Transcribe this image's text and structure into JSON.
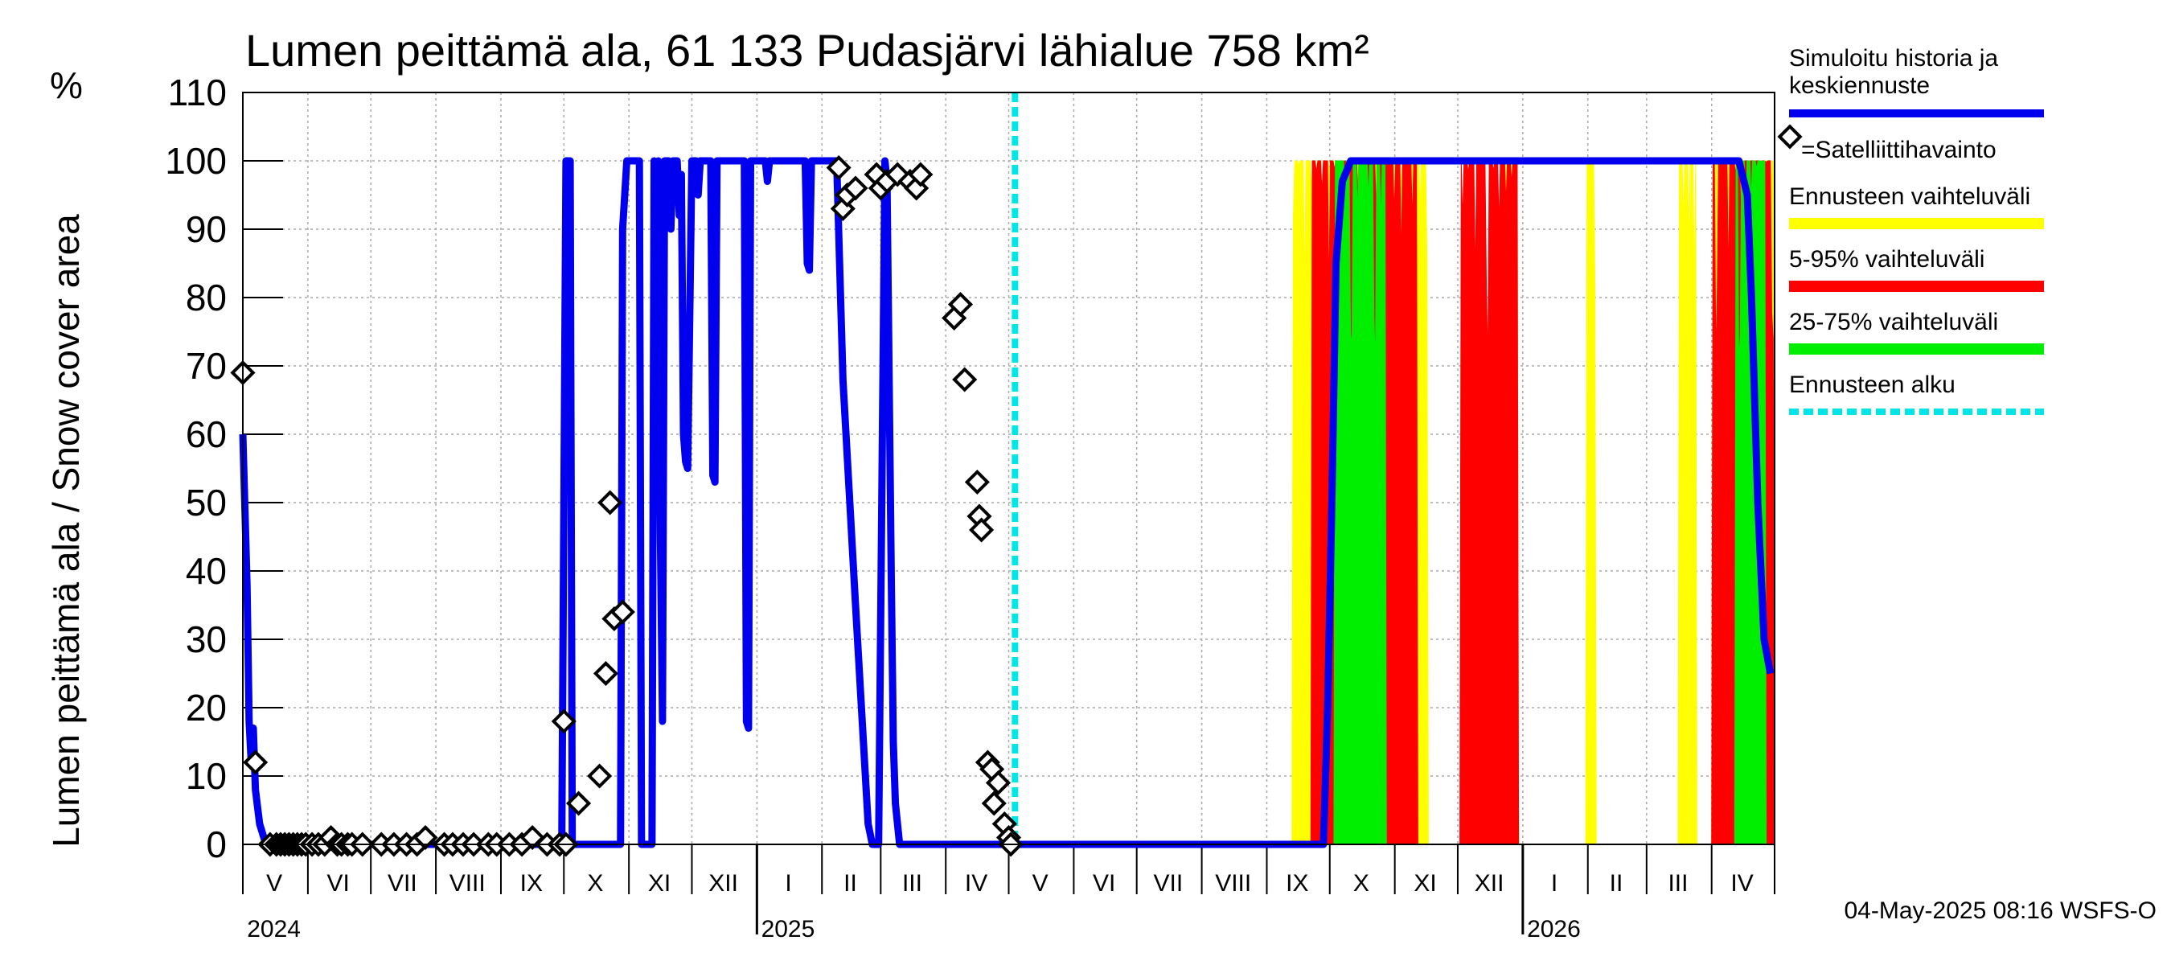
{
  "chart_data": {
    "type": "area",
    "title": "Lumen peittämä ala, 61 133 Pudasjärvi lähialue 758 km²",
    "ylabel": "Lumen peittämä ala / Snow cover area",
    "yunit": "%",
    "ylim": [
      0,
      110
    ],
    "yticks": [
      0,
      10,
      20,
      30,
      40,
      50,
      60,
      70,
      80,
      90,
      100,
      110
    ],
    "x_range_days": [
      0,
      730
    ],
    "month_labels": [
      {
        "label": "V",
        "center_day": 15
      },
      {
        "label": "VI",
        "center_day": 45.5
      },
      {
        "label": "VII",
        "center_day": 76
      },
      {
        "label": "VIII",
        "center_day": 107
      },
      {
        "label": "IX",
        "center_day": 137.5
      },
      {
        "label": "X",
        "center_day": 168
      },
      {
        "label": "XI",
        "center_day": 198.5
      },
      {
        "label": "XII",
        "center_day": 229
      },
      {
        "label": "I",
        "center_day": 260
      },
      {
        "label": "II",
        "center_day": 289.5
      },
      {
        "label": "III",
        "center_day": 319
      },
      {
        "label": "IV",
        "center_day": 349.5
      },
      {
        "label": "V",
        "center_day": 380
      },
      {
        "label": "VI",
        "center_day": 410.5
      },
      {
        "label": "VII",
        "center_day": 441
      },
      {
        "label": "VIII",
        "center_day": 472
      },
      {
        "label": "IX",
        "center_day": 502.5
      },
      {
        "label": "X",
        "center_day": 533
      },
      {
        "label": "XI",
        "center_day": 563.5
      },
      {
        "label": "XII",
        "center_day": 594
      },
      {
        "label": "I",
        "center_day": 625
      },
      {
        "label": "II",
        "center_day": 654.5
      },
      {
        "label": "III",
        "center_day": 684
      },
      {
        "label": "IV",
        "center_day": 714.5
      }
    ],
    "month_boundaries_days": [
      0,
      31,
      61,
      92,
      123,
      153,
      184,
      214,
      245,
      276,
      304,
      335,
      365,
      396,
      426,
      457,
      488,
      518,
      549,
      579,
      610,
      641,
      669,
      700,
      730
    ],
    "year_labels": [
      {
        "label": "2024",
        "day": 2
      },
      {
        "label": "2025",
        "day": 247
      },
      {
        "label": "2026",
        "day": 612
      }
    ],
    "year_boundaries_days": [
      245,
      610
    ],
    "forecast_start_day": 368,
    "colors": {
      "history": "#0000ee",
      "yellow": "#ffff00",
      "red": "#ff0000",
      "green": "#00ee00",
      "forecast_start": "#00e5e5",
      "observation": "#000000",
      "grid": "#a9a9a9"
    },
    "series": [
      {
        "name": "Simuloitu historia ja keskiennuste",
        "type": "line",
        "points": [
          [
            0,
            60
          ],
          [
            2,
            38
          ],
          [
            3,
            18
          ],
          [
            4,
            12
          ],
          [
            5,
            17
          ],
          [
            6,
            8
          ],
          [
            8,
            3
          ],
          [
            11,
            0
          ],
          [
            152,
            0
          ],
          [
            154,
            100
          ],
          [
            156,
            100
          ],
          [
            157,
            0
          ],
          [
            162,
            0
          ],
          [
            164,
            0
          ],
          [
            169,
            0
          ],
          [
            172,
            0
          ],
          [
            180,
            0
          ],
          [
            181,
            90
          ],
          [
            183,
            100
          ],
          [
            189,
            100
          ],
          [
            190,
            0
          ],
          [
            192,
            0
          ],
          [
            195,
            0
          ],
          [
            196,
            100
          ],
          [
            197,
            85
          ],
          [
            198,
            100
          ],
          [
            199,
            45
          ],
          [
            200,
            18
          ],
          [
            201,
            100
          ],
          [
            203,
            100
          ],
          [
            204,
            90
          ],
          [
            205,
            100
          ],
          [
            207,
            100
          ],
          [
            208,
            92
          ],
          [
            209,
            98
          ],
          [
            210,
            60
          ],
          [
            211,
            56
          ],
          [
            212,
            55
          ],
          [
            214,
            100
          ],
          [
            216,
            100
          ],
          [
            217,
            95
          ],
          [
            218,
            100
          ],
          [
            223,
            100
          ],
          [
            224,
            54
          ],
          [
            225,
            53
          ],
          [
            226,
            100
          ],
          [
            239,
            100
          ],
          [
            240,
            18
          ],
          [
            241,
            17
          ],
          [
            242,
            100
          ],
          [
            249,
            100
          ],
          [
            250,
            97
          ],
          [
            251,
            100
          ],
          [
            268,
            100
          ],
          [
            269,
            85
          ],
          [
            270,
            84
          ],
          [
            271,
            100
          ],
          [
            283,
            100
          ],
          [
            286,
            68
          ],
          [
            292,
            35
          ],
          [
            298,
            3
          ],
          [
            300,
            0
          ],
          [
            303,
            0
          ],
          [
            306,
            100
          ],
          [
            307,
            97
          ],
          [
            309,
            40
          ],
          [
            310,
            15
          ],
          [
            311,
            6
          ],
          [
            312,
            3
          ],
          [
            313,
            0
          ],
          [
            500,
            0
          ],
          [
            515,
            0
          ],
          [
            517,
            20
          ],
          [
            519,
            50
          ],
          [
            521,
            85
          ],
          [
            524,
            97
          ],
          [
            528,
            100
          ],
          [
            713,
            100
          ],
          [
            717,
            95
          ],
          [
            719,
            80
          ],
          [
            722,
            50
          ],
          [
            725,
            30
          ],
          [
            728,
            25
          ]
        ]
      },
      {
        "name": "Satelliittihavainto",
        "type": "scatter",
        "points": [
          [
            0,
            69
          ],
          [
            6,
            12
          ],
          [
            13,
            0
          ],
          [
            16,
            0
          ],
          [
            18,
            0
          ],
          [
            20,
            0
          ],
          [
            22,
            0
          ],
          [
            24,
            0
          ],
          [
            26,
            0
          ],
          [
            28,
            0
          ],
          [
            30,
            0
          ],
          [
            33,
            0
          ],
          [
            36,
            0
          ],
          [
            39,
            0
          ],
          [
            42,
            1
          ],
          [
            45,
            0
          ],
          [
            47,
            0
          ],
          [
            50,
            0
          ],
          [
            52,
            0
          ],
          [
            57,
            0
          ],
          [
            66,
            0
          ],
          [
            72,
            0
          ],
          [
            78,
            0
          ],
          [
            83,
            0
          ],
          [
            87,
            1
          ],
          [
            96,
            0
          ],
          [
            100,
            0
          ],
          [
            105,
            0
          ],
          [
            110,
            0
          ],
          [
            117,
            0
          ],
          [
            121,
            0
          ],
          [
            127,
            0
          ],
          [
            133,
            0
          ],
          [
            138,
            1
          ],
          [
            145,
            0
          ],
          [
            151,
            0
          ],
          [
            153,
            18
          ],
          [
            154,
            0
          ],
          [
            160,
            6
          ],
          [
            170,
            10
          ],
          [
            173,
            25
          ],
          [
            175,
            50
          ],
          [
            177,
            33
          ],
          [
            181,
            34
          ],
          [
            284,
            99
          ],
          [
            286,
            93
          ],
          [
            288,
            95
          ],
          [
            292,
            96
          ],
          [
            302,
            98
          ],
          [
            304,
            96
          ],
          [
            307,
            97
          ],
          [
            312,
            98
          ],
          [
            318,
            97
          ],
          [
            321,
            96
          ],
          [
            323,
            98
          ],
          [
            339,
            77
          ],
          [
            342,
            79
          ],
          [
            344,
            68
          ],
          [
            350,
            53
          ],
          [
            351,
            48
          ],
          [
            352,
            46
          ],
          [
            355,
            12
          ],
          [
            357,
            11
          ],
          [
            358,
            6
          ],
          [
            360,
            9
          ],
          [
            363,
            3
          ],
          [
            365,
            1
          ],
          [
            366,
            0
          ]
        ]
      },
      {
        "name": "Ennusteen vaihteluväli",
        "type": "band",
        "color": "yellow",
        "spans": [
          [
            500,
            565
          ],
          [
            600,
            608
          ],
          [
            640,
            645
          ],
          [
            684,
            693
          ],
          [
            700,
            730
          ]
        ]
      },
      {
        "name": "5-95% vaihteluväli",
        "type": "band",
        "color": "red",
        "spans": [
          [
            509,
            560
          ],
          [
            580,
            608
          ],
          [
            700,
            730
          ]
        ]
      },
      {
        "name": "25-75% vaihteluväli",
        "type": "band",
        "color": "green",
        "spans": [
          [
            520,
            545
          ],
          [
            711,
            726
          ]
        ]
      },
      {
        "name": "Ennusteen alku",
        "type": "vline",
        "day": 368
      }
    ],
    "legend": [
      {
        "key": "history",
        "label_lines": [
          "Simuloitu historia ja",
          "keskiennuste"
        ]
      },
      {
        "key": "observation",
        "label_lines": [
          "=Satelliittihavainto"
        ]
      },
      {
        "key": "yellow",
        "label_lines": [
          "Ennusteen vaihteluväli"
        ]
      },
      {
        "key": "red",
        "label_lines": [
          "5-95% vaihteluväli"
        ]
      },
      {
        "key": "green",
        "label_lines": [
          "25-75% vaihteluväli"
        ]
      },
      {
        "key": "forecast_start",
        "label_lines": [
          "Ennusteen alku"
        ]
      }
    ],
    "legend_position": "right",
    "footer": "04-May-2025 08:16 WSFS-O"
  }
}
